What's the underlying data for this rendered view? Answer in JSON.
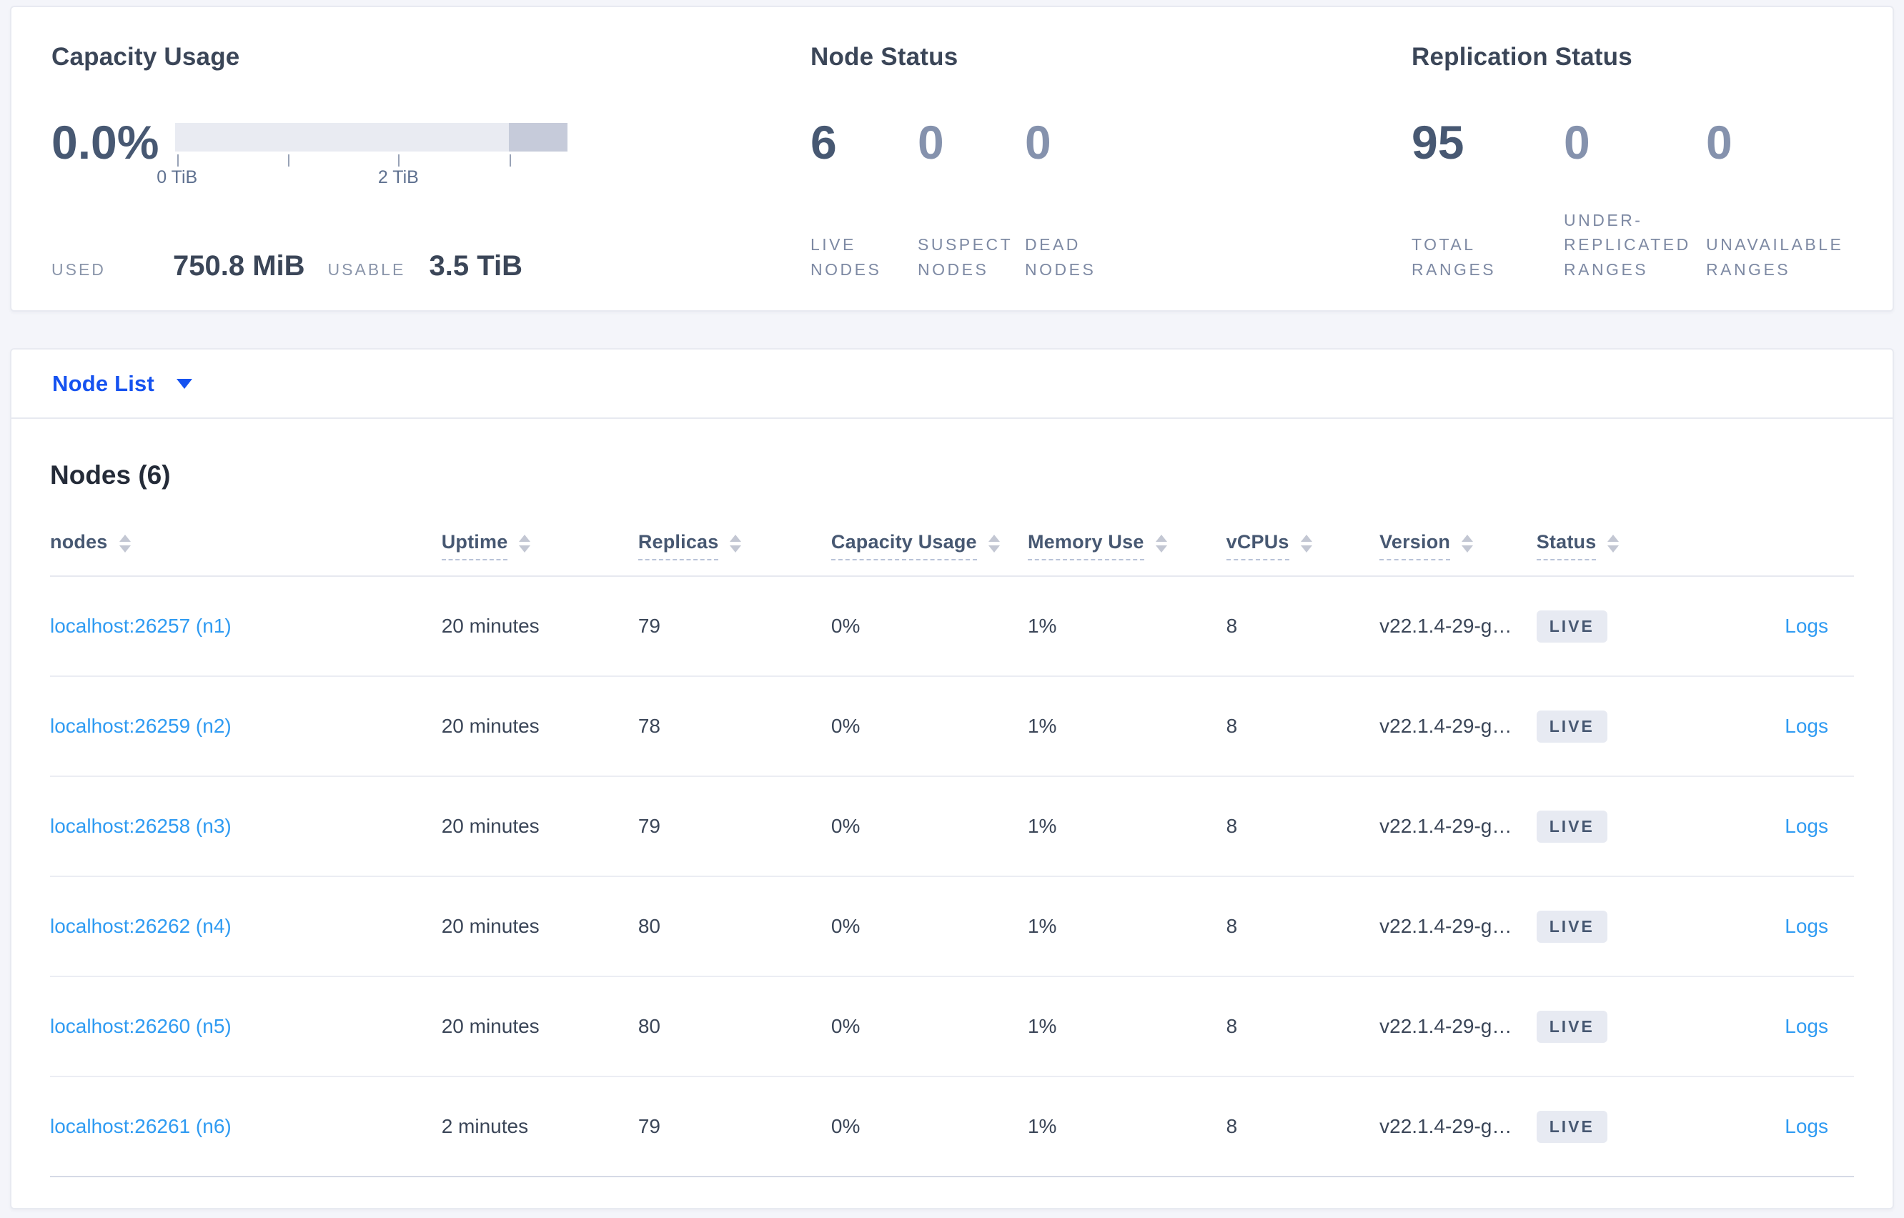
{
  "colors": {
    "accent_blue": "#1552f0",
    "link_blue": "#2f9bf2",
    "badge_bg": "#e7eaf2",
    "badge_text": "#475872",
    "bar_light": "#e9ebf2",
    "bar_dark": "#c6cbda"
  },
  "icons": {
    "dropdown_caret": "chevron-down",
    "column_sort": "sort-arrows"
  },
  "overview": {
    "capacity": {
      "title": "Capacity Usage",
      "percent": "0.0%",
      "tick_labels": [
        "0 TiB",
        "2 TiB"
      ],
      "used_label": "USED",
      "used_value": "750.8 MiB",
      "usable_label": "USABLE",
      "usable_value": "3.5 TiB"
    },
    "node_status": {
      "title": "Node Status",
      "stats": [
        {
          "value": "6",
          "label": "LIVE NODES"
        },
        {
          "value": "0",
          "label": "SUSPECT NODES"
        },
        {
          "value": "0",
          "label": "DEAD NODES"
        }
      ]
    },
    "replication": {
      "title": "Replication Status",
      "stats": [
        {
          "value": "95",
          "label": "TOTAL RANGES"
        },
        {
          "value": "0",
          "label": "UNDER-REPLICATED RANGES"
        },
        {
          "value": "0",
          "label": "UNAVAILABLE RANGES"
        }
      ]
    }
  },
  "node_list": {
    "dropdown_label": "Node List",
    "section_title": "Nodes (6)",
    "columns": [
      "nodes",
      "Uptime",
      "Replicas",
      "Capacity Usage",
      "Memory Use",
      "vCPUs",
      "Version",
      "Status"
    ],
    "rows": [
      {
        "node": "localhost:26257 (n1)",
        "uptime": "20 minutes",
        "replicas": "79",
        "capacity": "0%",
        "memory": "1%",
        "vcpus": "8",
        "version": "v22.1.4-29-g…",
        "status": "LIVE",
        "logs": "Logs"
      },
      {
        "node": "localhost:26259 (n2)",
        "uptime": "20 minutes",
        "replicas": "78",
        "capacity": "0%",
        "memory": "1%",
        "vcpus": "8",
        "version": "v22.1.4-29-g…",
        "status": "LIVE",
        "logs": "Logs"
      },
      {
        "node": "localhost:26258 (n3)",
        "uptime": "20 minutes",
        "replicas": "79",
        "capacity": "0%",
        "memory": "1%",
        "vcpus": "8",
        "version": "v22.1.4-29-g…",
        "status": "LIVE",
        "logs": "Logs"
      },
      {
        "node": "localhost:26262 (n4)",
        "uptime": "20 minutes",
        "replicas": "80",
        "capacity": "0%",
        "memory": "1%",
        "vcpus": "8",
        "version": "v22.1.4-29-g…",
        "status": "LIVE",
        "logs": "Logs"
      },
      {
        "node": "localhost:26260 (n5)",
        "uptime": "20 minutes",
        "replicas": "80",
        "capacity": "0%",
        "memory": "1%",
        "vcpus": "8",
        "version": "v22.1.4-29-g…",
        "status": "LIVE",
        "logs": "Logs"
      },
      {
        "node": "localhost:26261 (n6)",
        "uptime": "2 minutes",
        "replicas": "79",
        "capacity": "0%",
        "memory": "1%",
        "vcpus": "8",
        "version": "v22.1.4-29-g…",
        "status": "LIVE",
        "logs": "Logs"
      }
    ]
  }
}
